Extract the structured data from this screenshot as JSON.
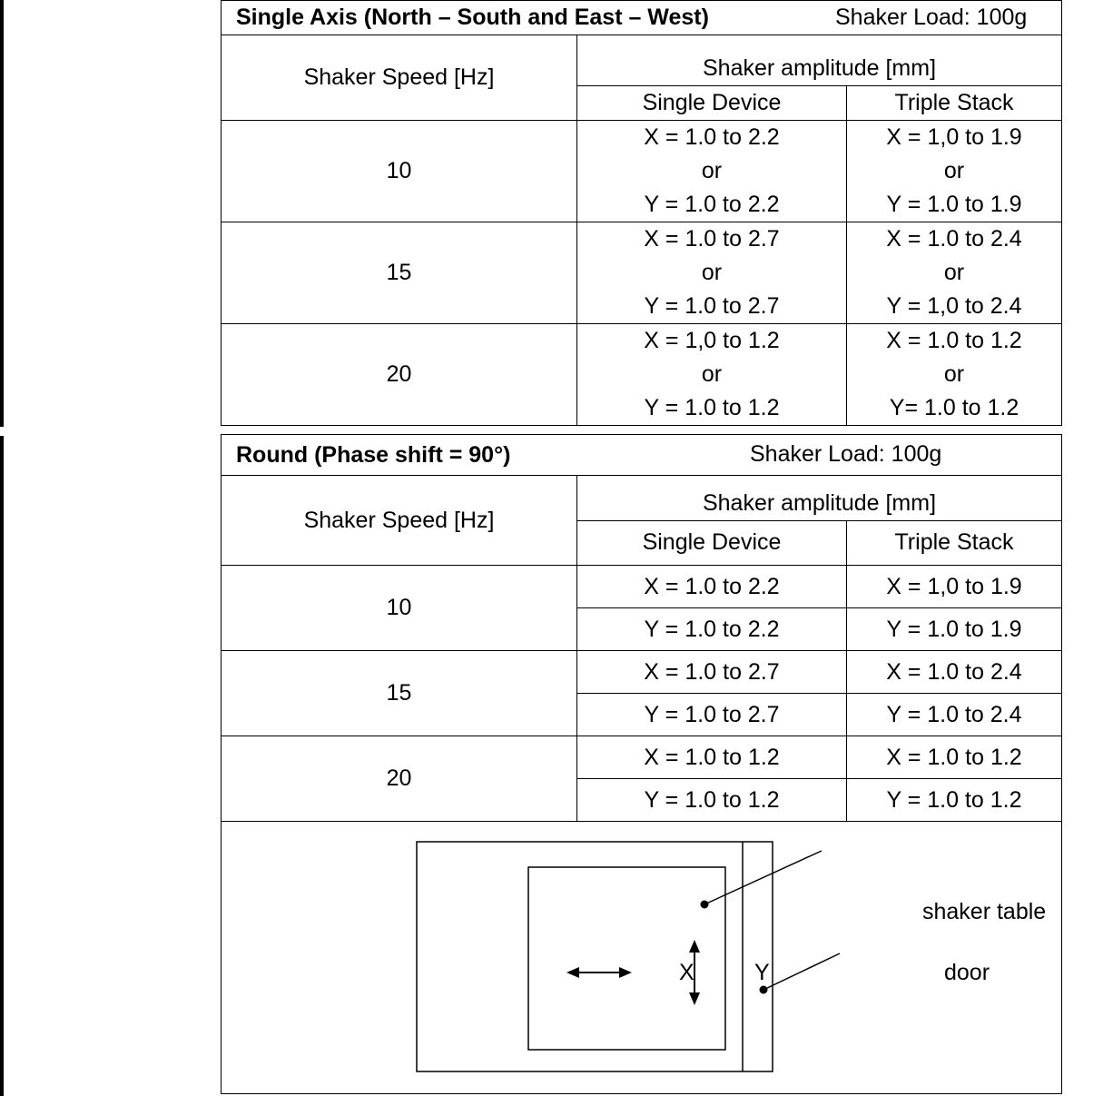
{
  "single_axis": {
    "title": "Single Axis (North – South and East – West)",
    "load": "Shaker Load: 100g",
    "amplitude_header": "Shaker amplitude [mm]",
    "speed_header": "Shaker Speed [Hz]",
    "col_single": "Single Device",
    "col_triple": "Triple Stack",
    "or_text": "or",
    "rows": [
      {
        "speed": "10",
        "single_x": "X = 1.0 to 2.2",
        "single_y": "Y = 1.0 to 2.2",
        "triple_x": "X = 1,0 to 1.9",
        "triple_y": "Y = 1.0 to 1.9"
      },
      {
        "speed": "15",
        "single_x": "X = 1.0  to 2.7",
        "single_y": "Y = 1.0  to 2.7",
        "triple_x": "X = 1.0 to 2.4",
        "triple_y": "Y = 1,0 to 2.4"
      },
      {
        "speed": "20",
        "single_x": "X = 1,0 to 1.2",
        "single_y": "Y = 1.0 to 1.2",
        "triple_x": "X = 1.0 to 1.2",
        "triple_y": "Y= 1.0 to 1.2"
      }
    ]
  },
  "round": {
    "title": "Round (Phase shift = 90°)",
    "load": "Shaker Load: 100g",
    "amplitude_header": "Shaker amplitude [mm]",
    "speed_header": "Shaker Speed [Hz]",
    "col_single": "Single Device",
    "col_triple": "Triple Stack",
    "rows": [
      {
        "speed": "10",
        "single_x": "X = 1.0 to 2.2",
        "single_y": "Y = 1.0 to 2.2",
        "triple_x": "X = 1,0 to 1.9",
        "triple_y": "Y = 1.0 to 1.9"
      },
      {
        "speed": "15",
        "single_x": "X = 1.0 to 2.7",
        "single_y": "Y = 1.0 to 2.7",
        "triple_x": "X = 1.0 to 2.4",
        "triple_y": "Y = 1.0 to 2.4"
      },
      {
        "speed": "20",
        "single_x": "X = 1.0 to 1.2",
        "single_y": "Y = 1.0 to 1.2",
        "triple_x": "X = 1.0 to 1.2",
        "triple_y": "Y = 1.0 to 1.2"
      }
    ]
  },
  "diagram": {
    "label_x": "X",
    "label_y": "Y",
    "label_table": "shaker table",
    "label_door": "door"
  }
}
